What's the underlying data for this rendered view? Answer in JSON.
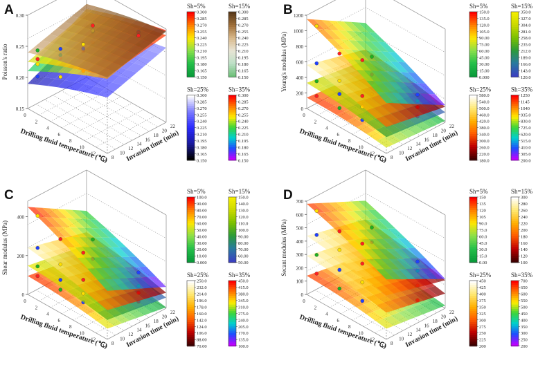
{
  "figure": {
    "panels": [
      "A",
      "B",
      "C",
      "D"
    ]
  },
  "chart_data": [
    {
      "panel": "A",
      "type": "surface3d",
      "zlabel": "Poisson's ratio",
      "xlabel": "Drilling fluid temperature (℃)",
      "ylabel": "Invasion time  (min)",
      "z_ticks": [
        "0.15",
        "0.20",
        "0.25",
        "0.30"
      ],
      "z_range": [
        0.15,
        0.3
      ],
      "x_ticks": [
        "0",
        "2",
        "4",
        "6",
        "8",
        "10",
        "12",
        "14"
      ],
      "y_ticks": [
        "8",
        "10",
        "12",
        "14",
        "16",
        "18",
        "20",
        "22"
      ],
      "series": [
        {
          "name": "Sh=5%",
          "colorbar_ticks": [
            "0.300",
            "0.285",
            "0.270",
            "0.255",
            "0.240",
            "0.225",
            "0.210",
            "0.195",
            "0.180",
            "0.165",
            "0.150"
          ],
          "cmap": "rainbowA",
          "corners": [
            0.225,
            0.274,
            0.255,
            0.29
          ],
          "points": [
            0.228,
            0.25,
            0.276,
            0.262,
            0.29
          ]
        },
        {
          "name": "Sh=15%",
          "colorbar_ticks": [
            "0.300",
            "0.285",
            "0.270",
            "0.255",
            "0.240",
            "0.225",
            "0.210",
            "0.195",
            "0.180",
            "0.165",
            "0.150"
          ],
          "cmap": "earth",
          "corners": [
            0.24,
            0.272,
            0.268,
            0.296
          ],
          "points": [
            0.242,
            0.26,
            0.283,
            0.27,
            0.285
          ]
        },
        {
          "name": "Sh=25%",
          "colorbar_ticks": [
            "0.300",
            "0.285",
            "0.270",
            "0.255",
            "0.240",
            "0.225",
            "0.210",
            "0.195",
            "0.180",
            "0.165",
            "0.150"
          ],
          "cmap": "blueish",
          "corners": [
            0.19,
            0.24,
            0.235,
            0.27
          ],
          "points": [
            0.2,
            0.215,
            0.24,
            0.243,
            0.27
          ]
        },
        {
          "name": "Sh=35%",
          "colorbar_ticks": [
            "0.300",
            "0.285",
            "0.270",
            "0.255",
            "0.240",
            "0.225",
            "0.210",
            "0.195",
            "0.180",
            "0.165",
            "0.150"
          ],
          "cmap": "rainbow",
          "corners": [
            0.21,
            0.27,
            0.26,
            0.298
          ],
          "points": [
            0.22,
            0.245,
            0.272,
            0.26,
            0.292
          ]
        }
      ]
    },
    {
      "panel": "B",
      "type": "surface3d",
      "zlabel": "Young's modulus (MPa)",
      "xlabel": "Drilling fluid temperature (℃)",
      "ylabel": "Invasion time  (min)",
      "z_ticks": [
        "0",
        "200",
        "400",
        "600",
        "800",
        "1000",
        "1200"
      ],
      "z_range": [
        0,
        1200
      ],
      "x_ticks": [
        "0",
        "2",
        "4",
        "6",
        "8",
        "10",
        "12",
        "14"
      ],
      "y_ticks": [
        "8",
        "10",
        "12",
        "14",
        "16",
        "18",
        "20",
        "22"
      ],
      "series": [
        {
          "name": "Sh=5%",
          "colorbar_ticks": [
            "150.0",
            "135.0",
            "120.0",
            "105.0",
            "90.00",
            "75.00",
            "60.00",
            "45.00",
            "30.00",
            "15.00",
            "0.000"
          ],
          "cmap": "rainbowA",
          "corners": [
            140,
            75,
            70,
            20
          ],
          "points": [
            150,
            120,
            90,
            80,
            40
          ]
        },
        {
          "name": "Sh=15%",
          "colorbar_ticks": [
            "350.0",
            "327.0",
            "304.0",
            "281.0",
            "258.0",
            "235.0",
            "212.0",
            "189.0",
            "166.0",
            "143.0",
            "120.0"
          ],
          "cmap": "viridis",
          "corners": [
            330,
            210,
            220,
            130
          ],
          "points": [
            340,
            300,
            260,
            220,
            160
          ]
        },
        {
          "name": "Sh=25%",
          "colorbar_ticks": [
            "580.0",
            "540.0",
            "500.0",
            "460.0",
            "420.0",
            "380.0",
            "340.0",
            "300.0",
            "260.0",
            "220.0",
            "180.0"
          ],
          "cmap": "hot",
          "corners": [
            560,
            340,
            360,
            200
          ],
          "points": [
            570,
            470,
            400,
            330,
            240
          ]
        },
        {
          "name": "Sh=35%",
          "colorbar_ticks": [
            "1250",
            "1145",
            "1040",
            "935.0",
            "830.0",
            "725.0",
            "620.0",
            "515.0",
            "410.0",
            "305.0",
            "200.0"
          ],
          "cmap": "rainbow",
          "corners": [
            1150,
            650,
            700,
            220
          ],
          "points": [
            1050,
            820,
            860,
            560,
            320
          ]
        }
      ]
    },
    {
      "panel": "C",
      "type": "surface3d",
      "zlabel": "Shear modulus (MPa)",
      "xlabel": "Drilling fluid temperature (℃)",
      "ylabel": "Invasion time  (min)",
      "z_ticks": [
        "0",
        "200",
        "400"
      ],
      "z_range": [
        0,
        480
      ],
      "x_ticks": [
        "0",
        "2",
        "4",
        "6",
        "8",
        "10",
        "12",
        "14"
      ],
      "y_ticks": [
        "8",
        "10",
        "12",
        "14",
        "16",
        "18",
        "20",
        "22"
      ],
      "series": [
        {
          "name": "Sh=5%",
          "colorbar_ticks": [
            "100.0",
            "90.00",
            "80.00",
            "70.00",
            "60.00",
            "50.00",
            "40.00",
            "30.00",
            "20.00",
            "10.00",
            "0.000"
          ],
          "cmap": "rainbowA",
          "corners": [
            95,
            55,
            50,
            5
          ],
          "points": [
            90,
            70,
            55,
            40,
            20
          ]
        },
        {
          "name": "Sh=15%",
          "colorbar_ticks": [
            "150.0",
            "140.0",
            "130.0",
            "120.0",
            "110.0",
            "100.0",
            "90.00",
            "80.00",
            "70.00",
            "60.00",
            "50.00"
          ],
          "cmap": "viridis",
          "corners": [
            148,
            100,
            95,
            55
          ],
          "points": [
            140,
            120,
            100,
            90,
            65
          ]
        },
        {
          "name": "Sh=25%",
          "colorbar_ticks": [
            "250.0",
            "232.0",
            "214.0",
            "196.0",
            "178.0",
            "160.0",
            "142.0",
            "124.0",
            "106.0",
            "88.00",
            "70.00"
          ],
          "cmap": "hot",
          "corners": [
            240,
            150,
            160,
            80
          ],
          "points": [
            235,
            200,
            170,
            140,
            100
          ]
        },
        {
          "name": "Sh=35%",
          "colorbar_ticks": [
            "450.0",
            "415.0",
            "380.0",
            "345.0",
            "310.0",
            "275.0",
            "240.0",
            "205.0",
            "170.0",
            "135.0",
            "100.0"
          ],
          "cmap": "rainbow",
          "corners": [
            450,
            250,
            270,
            110
          ],
          "points": [
            400,
            330,
            310,
            240,
            170
          ]
        }
      ]
    },
    {
      "panel": "D",
      "type": "surface3d",
      "zlabel": "Secant modulus (MPa)",
      "xlabel": "Drilling fluid temperature (℃)",
      "ylabel": "Invasion time  (min)",
      "z_ticks": [
        "0",
        "100",
        "200",
        "300",
        "400",
        "500",
        "600",
        "700"
      ],
      "z_range": [
        0,
        700
      ],
      "x_ticks": [
        "0",
        "2",
        "4",
        "6",
        "8",
        "10",
        "12",
        "14"
      ],
      "y_ticks": [
        "8",
        "10",
        "12",
        "14",
        "16",
        "18",
        "20",
        "22"
      ],
      "series": [
        {
          "name": "Sh=5%",
          "colorbar_ticks": [
            "150",
            "135",
            "120",
            "105",
            "90.0",
            "75.0",
            "60.0",
            "45.0",
            "30.0",
            "15.0",
            "0.00"
          ],
          "cmap": "rainbowA",
          "corners": [
            140,
            80,
            70,
            20
          ],
          "points": [
            150,
            110,
            90,
            80,
            40
          ]
        },
        {
          "name": "Sh=15%",
          "colorbar_ticks": [
            "300",
            "280",
            "260",
            "240",
            "220",
            "200",
            "180",
            "160",
            "140",
            "120",
            "100"
          ],
          "cmap": "hot",
          "corners": [
            290,
            200,
            200,
            110
          ],
          "points": [
            290,
            250,
            230,
            200,
            150
          ]
        },
        {
          "name": "Sh=25%",
          "colorbar_ticks": [
            "450",
            "425",
            "400",
            "375",
            "350",
            "325",
            "300",
            "275",
            "250",
            "225",
            "200"
          ],
          "cmap": "hot",
          "corners": [
            440,
            330,
            330,
            210
          ],
          "points": [
            440,
            400,
            370,
            330,
            260
          ]
        },
        {
          "name": "Sh=35%",
          "colorbar_ticks": [
            "700",
            "650",
            "600",
            "550",
            "500",
            "450",
            "400",
            "350",
            "300",
            "250",
            "200"
          ],
          "cmap": "rainbow",
          "corners": [
            680,
            450,
            470,
            220
          ],
          "points": [
            620,
            540,
            520,
            440,
            330
          ]
        }
      ]
    }
  ]
}
